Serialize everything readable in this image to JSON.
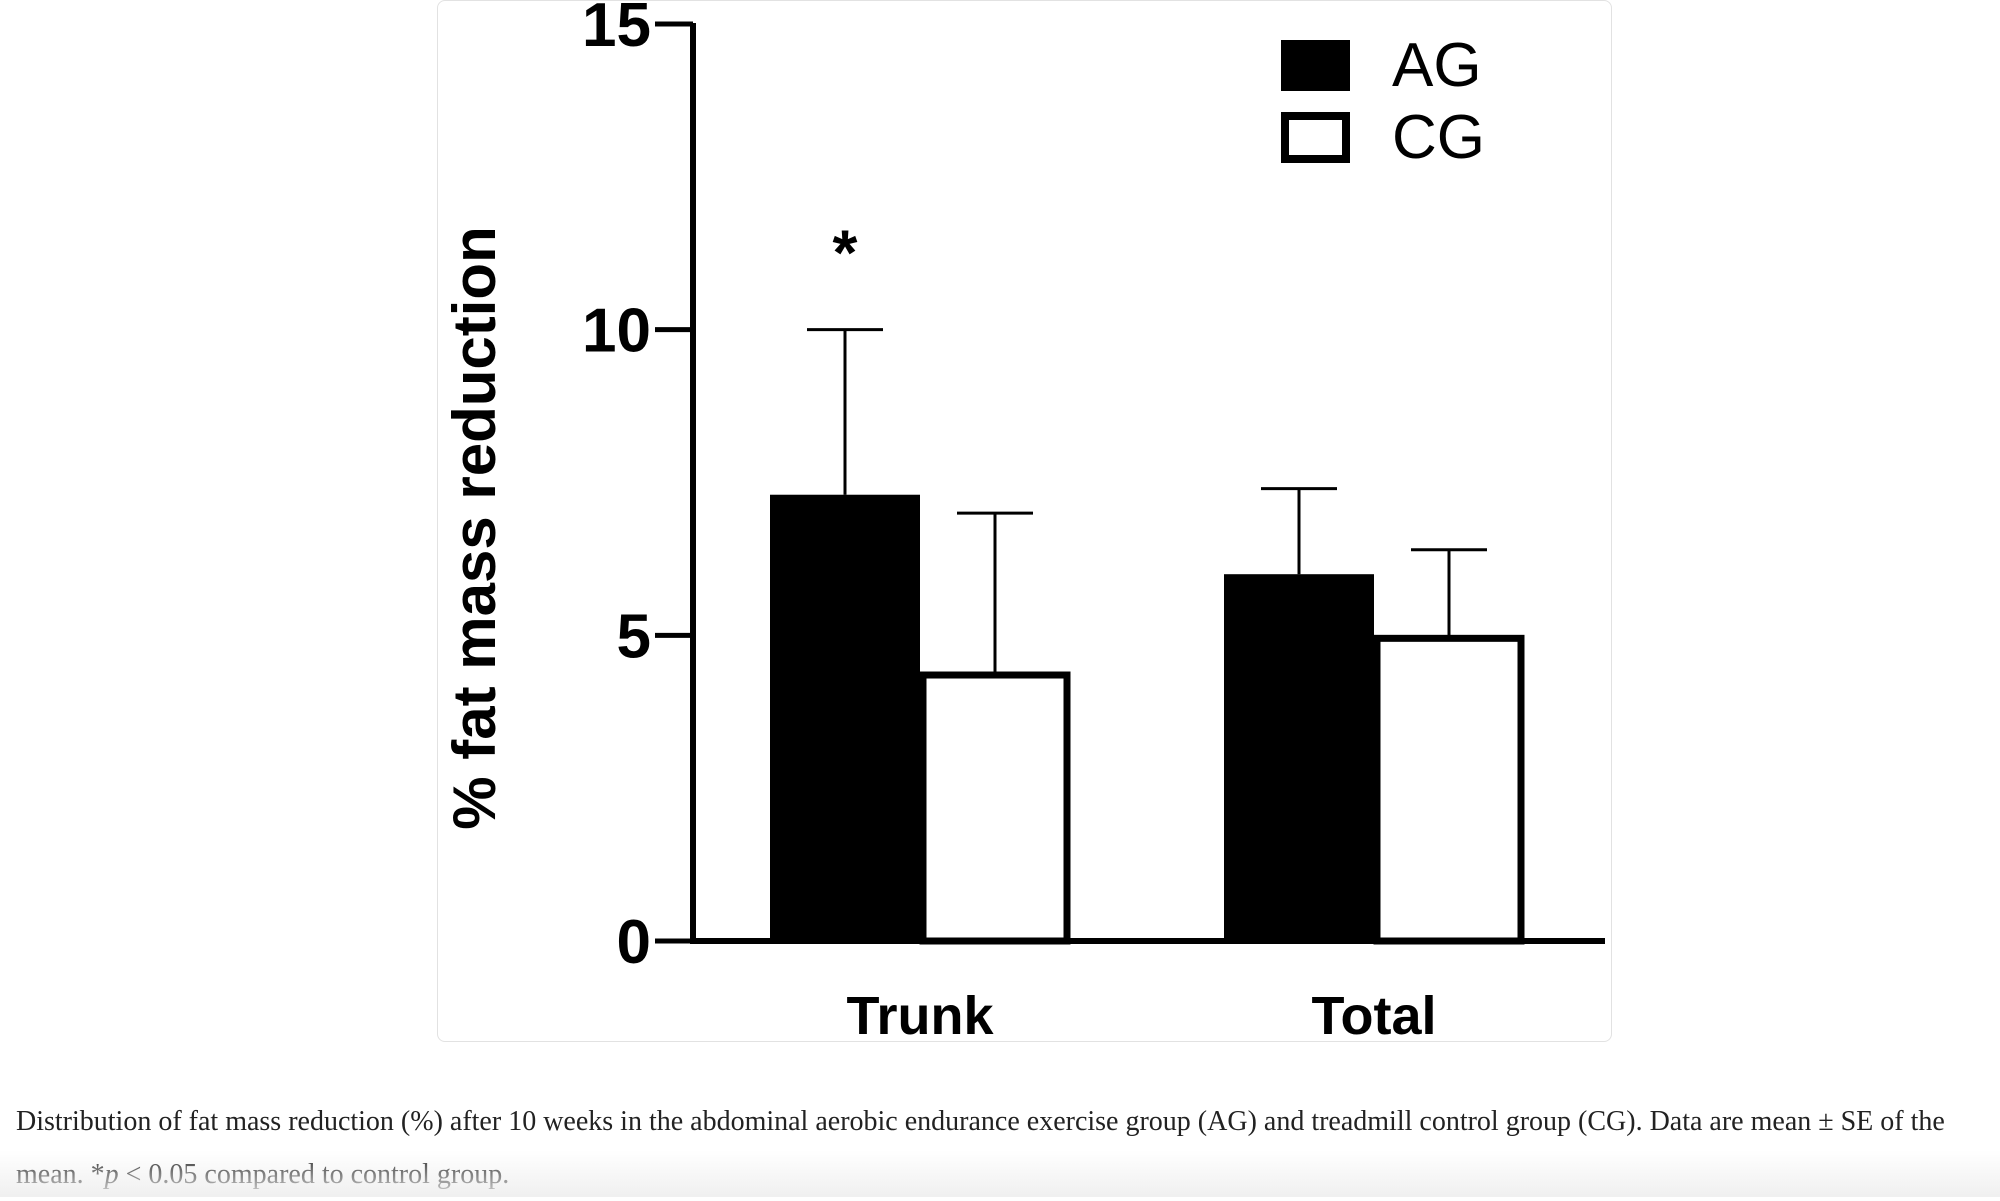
{
  "chart_data": {
    "type": "bar",
    "categories": [
      "Trunk",
      "Total"
    ],
    "series": [
      {
        "name": "AG",
        "values": [
          7.3,
          6.0
        ],
        "errors": [
          2.7,
          1.4
        ],
        "fill": "#000000"
      },
      {
        "name": "CG",
        "values": [
          4.4,
          5.0
        ],
        "errors": [
          2.6,
          1.4
        ],
        "fill": "#ffffff"
      }
    ],
    "ylabel": "% fat mass reduction",
    "xlabel": "",
    "ylim": [
      0,
      15
    ],
    "yticks": [
      "0",
      "5",
      "10",
      "15"
    ],
    "annotations": [
      {
        "text": "*",
        "category": "Trunk",
        "series": "AG"
      }
    ],
    "legend_position": "top-right",
    "grid": false
  },
  "caption": {
    "main": "Distribution of fat mass reduction (%) after 10 weeks in the abdominal aerobic endurance exercise group (AG) and treadmill control group (CG). Data are mean ± SE of the mean. *",
    "p_symbol": "p",
    "tail": " < 0.05 compared to control group."
  }
}
